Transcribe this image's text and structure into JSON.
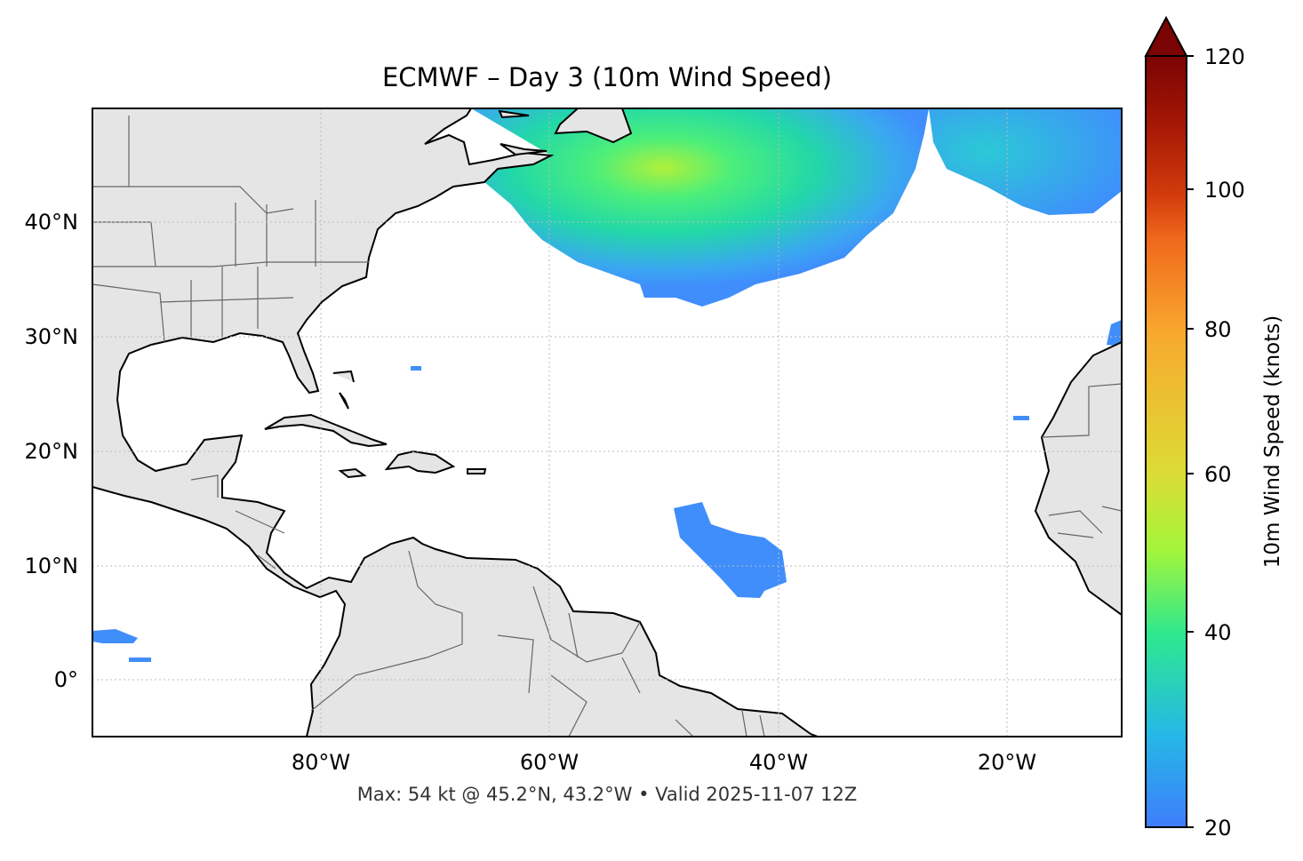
{
  "title": "ECMWF – Day 3 (10m Wind Speed)",
  "footer": "Max: 54 kt @ 45.2°N, 43.2°W • Valid 2025-11-07 12Z",
  "chart_data": {
    "type": "map",
    "projection": "plate-carree",
    "variable": "10m Wind Speed",
    "extent": {
      "lon": [
        -100,
        -10
      ],
      "lat": [
        -5,
        50
      ]
    },
    "grid": true,
    "lon_ticks": [
      {
        "value": -80,
        "label": "80°W"
      },
      {
        "value": -60,
        "label": "60°W"
      },
      {
        "value": -40,
        "label": "40°W"
      },
      {
        "value": -20,
        "label": "20°W"
      }
    ],
    "lat_ticks": [
      {
        "value": 40,
        "label": "40°N"
      },
      {
        "value": 30,
        "label": "30°N"
      },
      {
        "value": 20,
        "label": "20°N"
      },
      {
        "value": 10,
        "label": "10°N"
      },
      {
        "value": 0,
        "label": "0°"
      }
    ],
    "max": {
      "value": 54,
      "unit": "kt",
      "lat": 45.2,
      "lon": -43.2
    },
    "colorbar": {
      "label": "10m Wind Speed (knots)",
      "range": [
        20,
        120
      ],
      "extend": "max",
      "ticks": [
        {
          "value": 20,
          "label": "20"
        },
        {
          "value": 40,
          "label": "40"
        },
        {
          "value": 60,
          "label": "60"
        },
        {
          "value": 80,
          "label": "80"
        },
        {
          "value": 100,
          "label": "100"
        },
        {
          "value": 120,
          "label": "120"
        }
      ],
      "colors": [
        "#3f8efc",
        "#1ecbd8",
        "#2ee88f",
        "#a4f53a",
        "#dcdb35",
        "#f8a92e",
        "#f06a1c",
        "#d23b0c",
        "#a51805",
        "#7a0403"
      ]
    }
  },
  "colors": {
    "land": "#e5e5e5",
    "coast": "#000000",
    "border": "#666666",
    "grid": "#bbbbbb"
  }
}
